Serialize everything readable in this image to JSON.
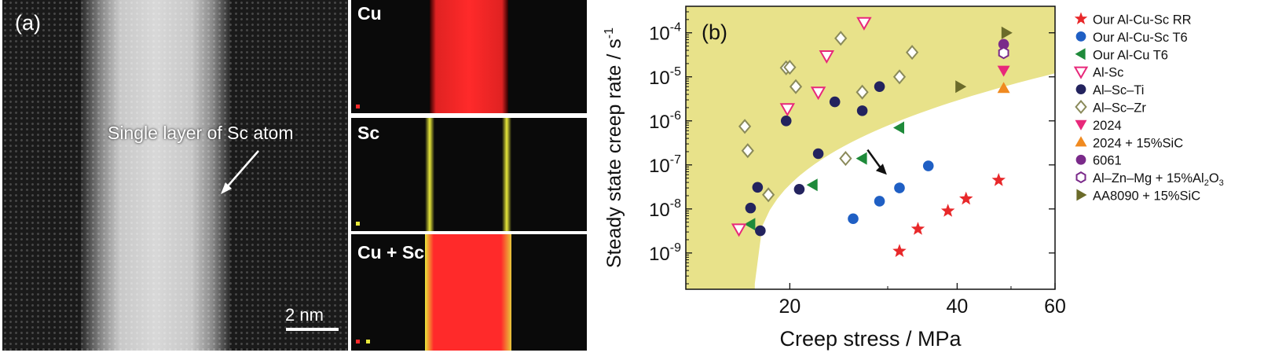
{
  "panel_a": {
    "label": "(a)",
    "annotation": "Single layer of Sc atom",
    "scale_bar": "2 nm",
    "maps": [
      {
        "label": "Cu",
        "colors": [
          "#ff2a2a"
        ]
      },
      {
        "label": "Sc",
        "colors": [
          "#e8e83a"
        ]
      },
      {
        "label": "Cu + Sc",
        "colors": [
          "#ff2a2a",
          "#e8e83a"
        ]
      }
    ]
  },
  "chart_data": {
    "type": "scatter",
    "panel_label": "(b)",
    "xlabel": "Creep stress / MPa",
    "ylabel": "Steady state creep rate / s",
    "ylabel_superscript": "-1",
    "x_scale": "log",
    "y_scale": "log",
    "xlim": [
      13,
      60
    ],
    "ylim": [
      1.5e-10,
      0.0004
    ],
    "x_ticks": [
      20,
      40,
      60
    ],
    "y_ticks": [
      {
        "value": 0.0001,
        "mantissa": "10",
        "exp": "-4"
      },
      {
        "value": 1e-05,
        "mantissa": "10",
        "exp": "-5"
      },
      {
        "value": 1e-06,
        "mantissa": "10",
        "exp": "-6"
      },
      {
        "value": 1e-07,
        "mantissa": "10",
        "exp": "-7"
      },
      {
        "value": 1e-08,
        "mantissa": "10",
        "exp": "-8"
      },
      {
        "value": 1e-09,
        "mantissa": "10",
        "exp": "-9"
      }
    ],
    "shaded_region_color": "#e8e28a",
    "legend_position": "outside-right",
    "series": [
      {
        "name": "Our Al-Cu-Sc RR",
        "marker": "star",
        "color": "#e8282a",
        "fill": true,
        "points": [
          [
            31.5,
            1.1e-09
          ],
          [
            34,
            3.5e-09
          ],
          [
            38.5,
            9e-09
          ],
          [
            41.5,
            1.7e-08
          ],
          [
            47.5,
            4.5e-08
          ]
        ]
      },
      {
        "name": "Our Al-Cu-Sc T6",
        "marker": "circle",
        "color": "#1f5fc4",
        "fill": true,
        "points": [
          [
            26,
            6e-09
          ],
          [
            29,
            1.5e-08
          ],
          [
            31.5,
            3e-08
          ],
          [
            35.5,
            9.5e-08
          ]
        ]
      },
      {
        "name": "Our Al-Cu T6",
        "marker": "tri-left",
        "color": "#1e8a3a",
        "fill": true,
        "points": [
          [
            17,
            4.5e-09
          ],
          [
            22,
            3.5e-08
          ],
          [
            27,
            1.4e-07
          ],
          [
            31.5,
            7e-07
          ]
        ]
      },
      {
        "name": "Al-Sc",
        "marker": "tri-down",
        "color": "#e8287a",
        "fill": false,
        "points": [
          [
            16.2,
            3.5e-09
          ],
          [
            19.8,
            1.9e-06
          ],
          [
            22.5,
            4.5e-06
          ],
          [
            23.3,
            3e-05
          ],
          [
            27.2,
            0.00017
          ]
        ]
      },
      {
        "name": "Al–Sc–Ti",
        "marker": "circle",
        "color": "#23235e",
        "fill": true,
        "points": [
          [
            17,
            1.05e-08
          ],
          [
            17.7,
            3.2e-09
          ],
          [
            17.5,
            3.1e-08
          ],
          [
            19.7,
            1e-06
          ],
          [
            20.8,
            2.8e-08
          ],
          [
            22.5,
            1.8e-07
          ],
          [
            24.1,
            2.7e-06
          ],
          [
            27,
            1.7e-06
          ],
          [
            29,
            6e-06
          ]
        ]
      },
      {
        "name": "Al–Sc–Zr",
        "marker": "diamond",
        "color": "#8a8a5a",
        "fill": false,
        "points": [
          [
            16.6,
            7.5e-07
          ],
          [
            16.8,
            2.1e-07
          ],
          [
            18.3,
            2.1e-08
          ],
          [
            19.7,
            1.6e-05
          ],
          [
            20,
            1.65e-05
          ],
          [
            20.5,
            6e-06
          ],
          [
            24.7,
            7.5e-05
          ],
          [
            25.2,
            1.4e-07
          ],
          [
            27,
            4.5e-06
          ],
          [
            31.5,
            1e-05
          ],
          [
            33.2,
            3.6e-05
          ]
        ]
      },
      {
        "name": "2024",
        "marker": "tri-down",
        "color": "#e8287a",
        "fill": true,
        "points": [
          [
            48.5,
            1.4e-05
          ]
        ]
      },
      {
        "name": "2024 + 15%SiC",
        "marker": "tri-up",
        "color": "#f08a20",
        "fill": true,
        "points": [
          [
            48.5,
            5.5e-06
          ]
        ]
      },
      {
        "name": "6061",
        "marker": "circle",
        "color": "#7a2a8a",
        "fill": true,
        "points": [
          [
            48.5,
            5.5e-05
          ]
        ]
      },
      {
        "name": "Al–Zn–Mg + 15%Al",
        "name_subscript": "2",
        "name_tail": "O",
        "name_tail_subscript": "3",
        "marker": "hexagon",
        "color": "#7a2a8a",
        "fill": false,
        "points": [
          [
            48.5,
            3.5e-05
          ]
        ]
      },
      {
        "name": "AA8090 + 15%SiC",
        "marker": "tri-right",
        "color": "#6b6b2a",
        "fill": true,
        "points": [
          [
            40.5,
            6e-06
          ],
          [
            49,
            0.0001
          ]
        ]
      }
    ]
  }
}
